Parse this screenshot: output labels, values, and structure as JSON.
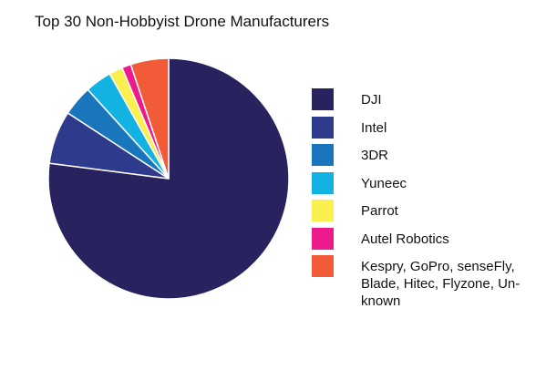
{
  "chart_data": {
    "type": "pie",
    "title": "Top 30 Non-Hobbyist Drone Manufacturers",
    "series": [
      {
        "label": "DJI",
        "value": 75.5,
        "color": "#28235E"
      },
      {
        "label": "Intel",
        "value": 7.0,
        "color": "#2E3A8C"
      },
      {
        "label": "3DR",
        "value": 4.0,
        "color": "#1976BC"
      },
      {
        "label": "Yuneec",
        "value": 3.5,
        "color": "#12B2E3"
      },
      {
        "label": "Parrot",
        "value": 1.8,
        "color": "#F9F04F"
      },
      {
        "label": "Autel Robotics",
        "value": 1.2,
        "color": "#EC1A8A"
      },
      {
        "label": "Kespry, GoPro, senseFly, Blade, Hitec, Flyzone, Un-known",
        "value": 5.0,
        "color": "#F25B37"
      }
    ],
    "legend_position": "right"
  }
}
